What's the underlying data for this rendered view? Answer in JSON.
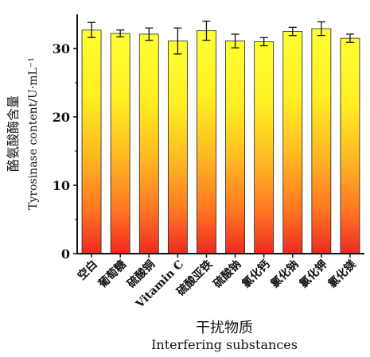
{
  "chart_data": {
    "type": "bar",
    "categories": [
      "空白",
      "葡萄糖",
      "硫酸铜",
      "Vitamin C",
      "硫酸亚铁",
      "硫酸钠",
      "氯化钙",
      "氯化钠",
      "氯化钾",
      "氯化镁"
    ],
    "values": [
      32.7,
      32.2,
      32.1,
      31.1,
      32.6,
      31.1,
      31.0,
      32.5,
      32.9,
      31.5
    ],
    "errors": [
      1.1,
      0.5,
      0.9,
      1.9,
      1.4,
      1.0,
      0.6,
      0.6,
      1.0,
      0.6
    ],
    "xlabel_zh": "干扰物质",
    "xlabel_en": "Interfering substances",
    "ylabel_zh": "酪氨酸酶含量",
    "ylabel_en": "Tyrosinase content/U·mL⁻¹",
    "ylim": [
      0,
      35
    ],
    "yticks": [
      0,
      10,
      20,
      30
    ],
    "grid": false,
    "colors": {
      "bar_top": "#ffff33",
      "bar_bottom": "#ee2a22",
      "axis": "#111111"
    }
  }
}
